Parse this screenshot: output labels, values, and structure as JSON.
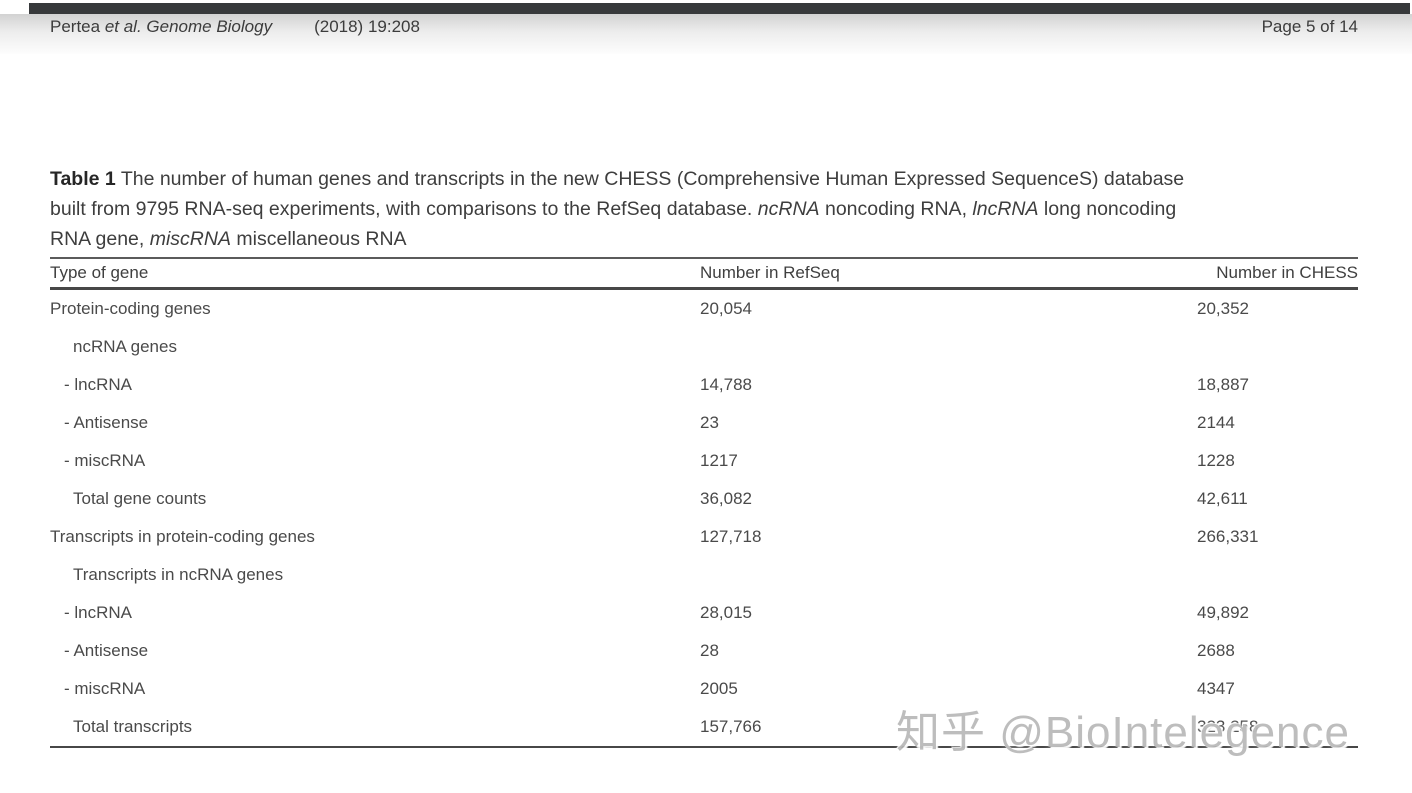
{
  "page_header": {
    "author": "Pertea ",
    "author_italic": "et al. Genome Biology",
    "issue": "(2018) 19:208",
    "page_indicator": "Page 5 of 14"
  },
  "caption": {
    "label": "Table 1",
    "line1_rest": " The number of human genes and transcripts in the new CHESS (Comprehensive Human Expressed SequenceS) database",
    "line2_a": "built from 9795 RNA-seq experiments, with comparisons to the RefSeq database. ",
    "line2_i1": "ncRNA",
    "line2_b": " noncoding RNA, ",
    "line2_i2": "lncRNA",
    "line2_c": " long noncoding",
    "line3_a": "RNA gene, ",
    "line3_i": "miscRNA",
    "line3_b": " miscellaneous RNA"
  },
  "table": {
    "columns": {
      "type": "Type of gene",
      "refseq": "Number in RefSeq",
      "chess": "Number in CHESS"
    },
    "rows": [
      {
        "label": "Protein-coding genes",
        "refseq": "20,054",
        "chess": "20,352"
      },
      {
        "label": "ncRNA genes",
        "refseq": "",
        "chess": ""
      },
      {
        "label": "- lncRNA",
        "refseq": "14,788",
        "chess": "18,887"
      },
      {
        "label": "- Antisense",
        "refseq": "23",
        "chess": "2144"
      },
      {
        "label": "- miscRNA",
        "refseq": "1217",
        "chess": "1228"
      },
      {
        "label": "Total gene counts",
        "refseq": "36,082",
        "chess": "42,611"
      },
      {
        "label": "Transcripts in protein-coding genes",
        "refseq": "127,718",
        "chess": "266,331"
      },
      {
        "label": "Transcripts in ncRNA genes",
        "refseq": "",
        "chess": ""
      },
      {
        "label": "- lncRNA",
        "refseq": "28,015",
        "chess": "49,892"
      },
      {
        "label": "- Antisense",
        "refseq": "28",
        "chess": "2688"
      },
      {
        "label": "- miscRNA",
        "refseq": "2005",
        "chess": "4347"
      },
      {
        "label": "Total transcripts",
        "refseq": "157,766",
        "chess": "323,258"
      }
    ]
  },
  "watermark": {
    "text": "知乎 @BioIntelegence",
    "color": "#acacac"
  },
  "colors": {
    "topbar": "#37393b",
    "rule": "#474747"
  }
}
